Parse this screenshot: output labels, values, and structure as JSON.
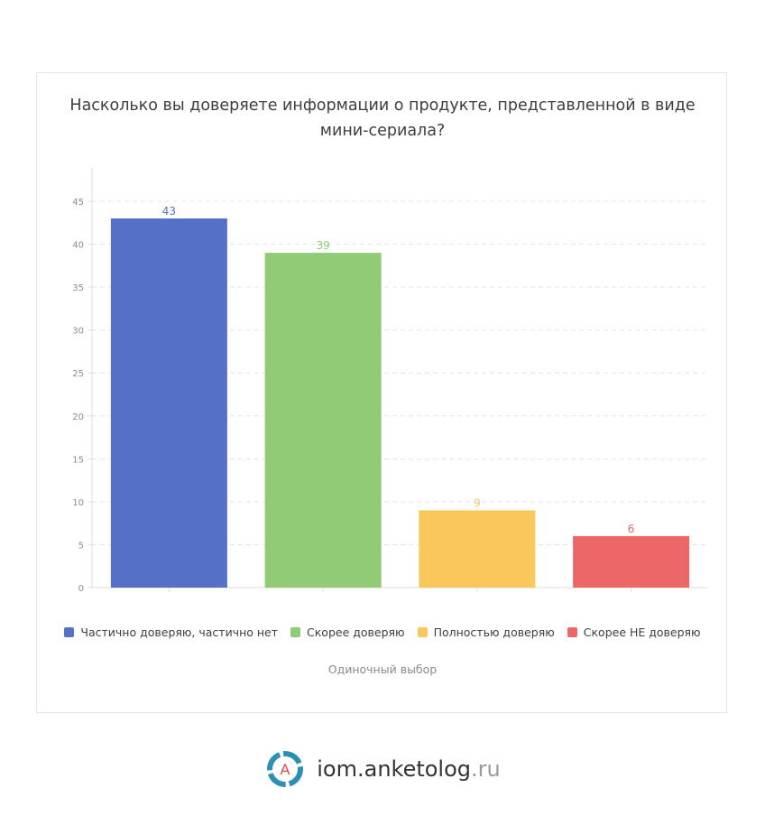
{
  "chart_data": {
    "type": "bar",
    "title_lines": [
      "Насколько вы доверяете информации о продукте, представленной в виде",
      "мини-сериала?"
    ],
    "categories": [
      "Частично доверяю, частично нет",
      "Скорее доверяю",
      "Полностью доверяю",
      "Скорее НЕ доверяю"
    ],
    "values": [
      43,
      39,
      9,
      6
    ],
    "colors": [
      "#5471c7",
      "#92cb75",
      "#f9c75b",
      "#ee6767"
    ],
    "ylim": [
      0,
      45
    ],
    "yticks": [
      0,
      5,
      10,
      15,
      20,
      25,
      30,
      35,
      40,
      45
    ],
    "grid": true,
    "legend_position": "bottom",
    "caption": "Одиночный выбор"
  },
  "footer": {
    "logo_letter": "A",
    "brand": "iom.anketolog",
    "tld": ".ru"
  }
}
